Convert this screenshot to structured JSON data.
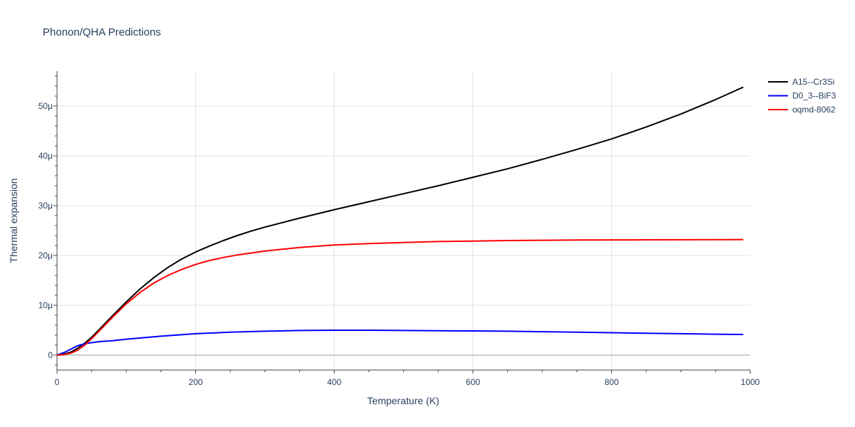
{
  "chart_data": {
    "type": "line",
    "title": "Phonon/QHA Predictions",
    "xlabel": "Temperature (K)",
    "ylabel": "Thermal expansion",
    "xlim": [
      0,
      1000
    ],
    "ylim": [
      -3,
      57
    ],
    "x_ticks": [
      0,
      200,
      400,
      600,
      800,
      1000
    ],
    "x_tick_labels": [
      "0",
      "200",
      "400",
      "600",
      "800",
      "1000"
    ],
    "y_ticks": [
      0,
      10,
      20,
      30,
      40,
      50
    ],
    "y_tick_labels": [
      "0",
      "10μ",
      "20μ",
      "30μ",
      "40μ",
      "50μ"
    ],
    "y_unit_note": "values in units of 1e-6 (μ)",
    "grid": true,
    "legend_position": "top-right",
    "series": [
      {
        "name": "A15--Cr3Si",
        "color": "#000000",
        "x": [
          0,
          10,
          20,
          30,
          40,
          50,
          60,
          80,
          100,
          120,
          140,
          160,
          180,
          200,
          220,
          240,
          260,
          280,
          300,
          350,
          400,
          450,
          500,
          550,
          600,
          650,
          700,
          750,
          800,
          850,
          900,
          950,
          990
        ],
        "y": [
          0,
          0.2,
          0.6,
          1.4,
          2.4,
          3.6,
          5.0,
          7.9,
          10.7,
          13.3,
          15.6,
          17.6,
          19.3,
          20.7,
          21.9,
          23.0,
          24.0,
          24.9,
          25.7,
          27.5,
          29.2,
          30.8,
          32.4,
          34.0,
          35.7,
          37.4,
          39.3,
          41.3,
          43.4,
          45.8,
          48.4,
          51.3,
          53.8
        ]
      },
      {
        "name": "D0_3--BiF3",
        "color": "#0000ff",
        "x": [
          0,
          10,
          20,
          30,
          40,
          60,
          80,
          100,
          150,
          200,
          250,
          300,
          350,
          400,
          450,
          500,
          550,
          600,
          650,
          700,
          750,
          800,
          850,
          900,
          950,
          990
        ],
        "y": [
          0,
          0.5,
          1.2,
          1.9,
          2.3,
          2.7,
          2.9,
          3.2,
          3.8,
          4.3,
          4.6,
          4.8,
          4.95,
          5.0,
          5.0,
          4.95,
          4.9,
          4.85,
          4.8,
          4.7,
          4.6,
          4.5,
          4.4,
          4.3,
          4.2,
          4.15
        ]
      },
      {
        "name": "oqmd-8062",
        "color": "#ff0000",
        "x": [
          0,
          10,
          20,
          30,
          40,
          50,
          60,
          80,
          100,
          120,
          140,
          160,
          180,
          200,
          220,
          240,
          260,
          280,
          300,
          350,
          400,
          450,
          500,
          550,
          600,
          650,
          700,
          750,
          800,
          850,
          900,
          950,
          990
        ],
        "y": [
          0,
          0.1,
          0.4,
          1.0,
          2.0,
          3.3,
          4.7,
          7.6,
          10.3,
          12.6,
          14.5,
          16.0,
          17.2,
          18.2,
          19.0,
          19.6,
          20.1,
          20.5,
          20.9,
          21.6,
          22.1,
          22.4,
          22.6,
          22.8,
          22.9,
          23.0,
          23.05,
          23.1,
          23.12,
          23.14,
          23.16,
          23.18,
          23.2
        ]
      }
    ]
  }
}
